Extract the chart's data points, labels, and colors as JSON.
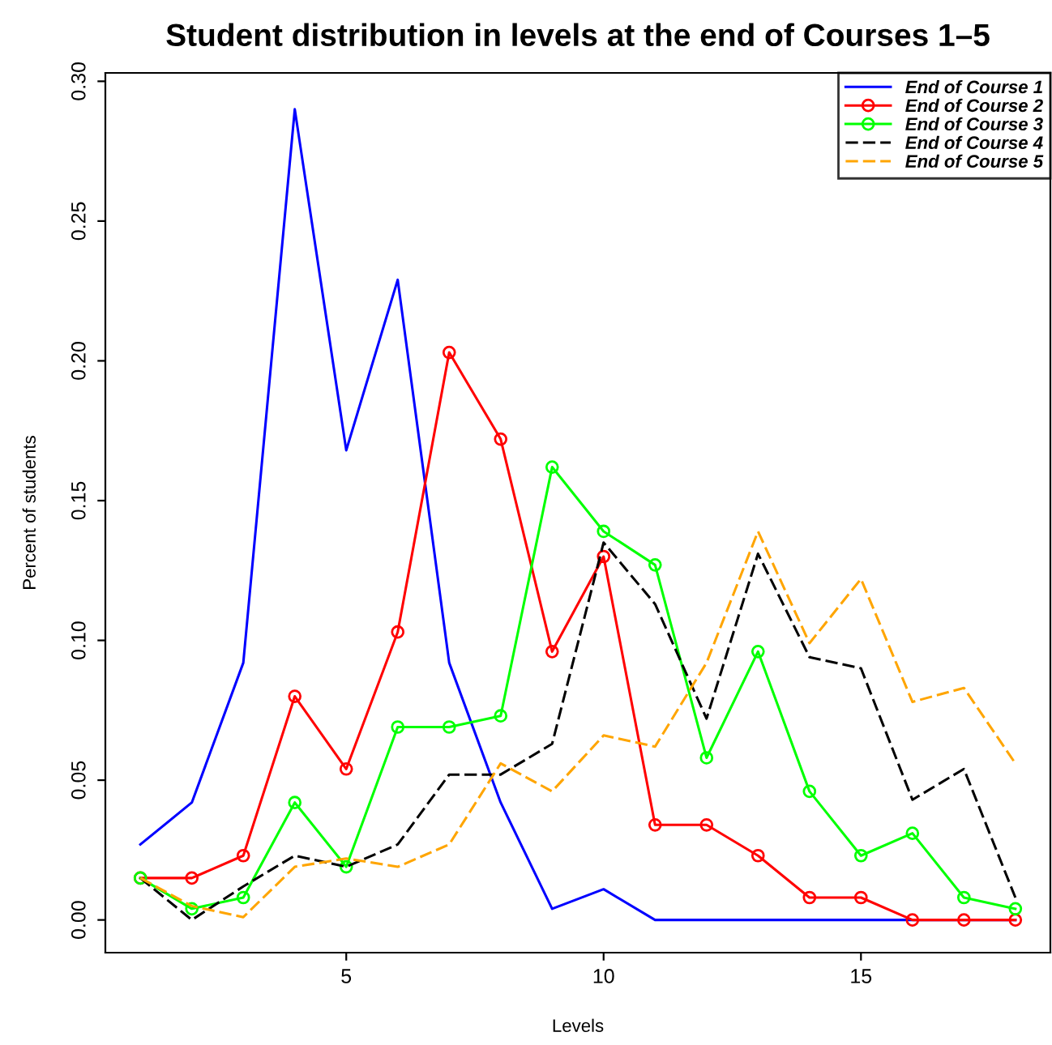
{
  "chart_data": {
    "type": "line",
    "title": "Student distribution in levels at the end of Courses 1–5",
    "xlabel": "Levels",
    "ylabel": "Percent of students",
    "x": [
      1,
      2,
      3,
      4,
      5,
      6,
      7,
      8,
      9,
      10,
      11,
      12,
      13,
      14,
      15,
      16,
      17,
      18
    ],
    "series": [
      {
        "name": "End of Course 1",
        "color": "#0000ff",
        "marker": "none",
        "line_style": "solid",
        "values": [
          0.027,
          0.042,
          0.092,
          0.29,
          0.168,
          0.229,
          0.092,
          0.042,
          0.004,
          0.011,
          0,
          0,
          0,
          0,
          0,
          0,
          0,
          0
        ]
      },
      {
        "name": "End of Course 2",
        "color": "#ff0000",
        "marker": "circle",
        "line_style": "solid",
        "values": [
          0.015,
          0.015,
          0.023,
          0.08,
          0.054,
          0.103,
          0.203,
          0.172,
          0.096,
          0.13,
          0.034,
          0.034,
          0.023,
          0.008,
          0.008,
          0,
          0,
          0
        ]
      },
      {
        "name": "End of Course 3",
        "color": "#00ff00",
        "marker": "circle",
        "line_style": "solid",
        "values": [
          0.015,
          0.004,
          0.008,
          0.042,
          0.019,
          0.069,
          0.069,
          0.073,
          0.162,
          0.139,
          0.127,
          0.058,
          0.096,
          0.046,
          0.023,
          0.031,
          0.008,
          0.004
        ]
      },
      {
        "name": "End of Course 4",
        "color": "#000000",
        "marker": "none",
        "line_style": "dashed",
        "values": [
          0.015,
          0.0,
          0.012,
          0.023,
          0.019,
          0.027,
          0.052,
          0.052,
          0.063,
          0.135,
          0.113,
          0.072,
          0.131,
          0.094,
          0.09,
          0.043,
          0.054,
          0.008
        ]
      },
      {
        "name": "End of Course 5",
        "color": "#ffa500",
        "marker": "none",
        "line_style": "dashed",
        "values": [
          0.015,
          0.005,
          0.001,
          0.019,
          0.022,
          0.019,
          0.027,
          0.056,
          0.046,
          0.066,
          0.062,
          0.092,
          0.139,
          0.099,
          0.122,
          0.078,
          0.083,
          0.056
        ]
      }
    ],
    "xlim": [
      0.32,
      18.68
    ],
    "ylim": [
      -0.0117,
      0.303
    ],
    "xticks": [
      5,
      10,
      15
    ],
    "yticks": [
      {
        "value": 0,
        "label": "0.00"
      },
      {
        "value": 0.05,
        "label": "0.05"
      },
      {
        "value": 0.1,
        "label": "0.10"
      },
      {
        "value": 0.15,
        "label": "0.15"
      },
      {
        "value": 0.2,
        "label": "0.20"
      },
      {
        "value": 0.25,
        "label": "0.25"
      },
      {
        "value": 0.3,
        "label": "0.30"
      }
    ],
    "grid": false,
    "legend": "top right"
  }
}
